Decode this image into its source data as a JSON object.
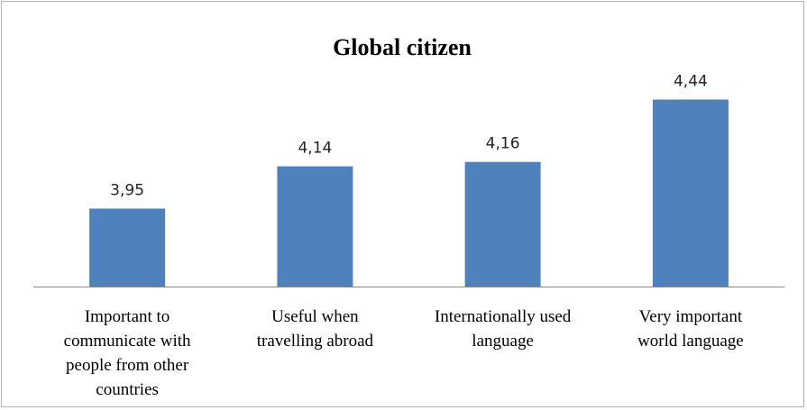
{
  "chart_data": {
    "type": "bar",
    "title": "Global citizen",
    "categories": [
      [
        "Important to",
        "communicate with",
        "people from other",
        "countries"
      ],
      [
        "Useful when",
        "travelling abroad"
      ],
      [
        "Internationally used",
        "language"
      ],
      [
        "Very important",
        "world language"
      ]
    ],
    "values": [
      3.95,
      4.14,
      4.16,
      4.44
    ],
    "data_labels": [
      "3,95",
      "4,14",
      "4,16",
      "4,44"
    ],
    "ylim": [
      3.6,
      4.6
    ],
    "bar_color": "#4F81BD",
    "axis_color": "#888888",
    "grid": false,
    "legend": "none"
  }
}
